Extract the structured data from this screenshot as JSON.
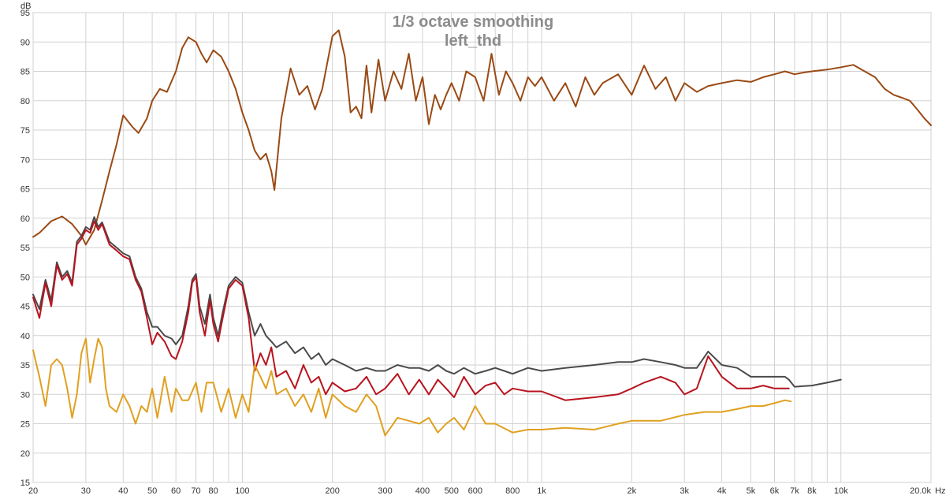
{
  "chart_data": {
    "type": "line",
    "title": "1/3 octave smoothing",
    "subtitle": "left_thd",
    "ylabel": "dB",
    "xunit": "Hz",
    "xscale": "log",
    "xlim": [
      20,
      20000
    ],
    "ylim": [
      15,
      95
    ],
    "grid": true,
    "y_ticks": [
      15,
      20,
      25,
      30,
      35,
      40,
      45,
      50,
      55,
      60,
      65,
      70,
      75,
      80,
      85,
      90,
      95
    ],
    "x_ticks": [
      {
        "value": 20,
        "label": "20"
      },
      {
        "value": 30,
        "label": "30"
      },
      {
        "value": 40,
        "label": "40"
      },
      {
        "value": 50,
        "label": "50"
      },
      {
        "value": 60,
        "label": "60"
      },
      {
        "value": 70,
        "label": "70"
      },
      {
        "value": 80,
        "label": "80"
      },
      {
        "value": 100,
        "label": "100"
      },
      {
        "value": 200,
        "label": "200"
      },
      {
        "value": 300,
        "label": "300"
      },
      {
        "value": 400,
        "label": "400"
      },
      {
        "value": 500,
        "label": "500"
      },
      {
        "value": 600,
        "label": "600"
      },
      {
        "value": 800,
        "label": "800"
      },
      {
        "value": 1000,
        "label": "1k"
      },
      {
        "value": 2000,
        "label": "2k"
      },
      {
        "value": 3000,
        "label": "3k"
      },
      {
        "value": 4000,
        "label": "4k"
      },
      {
        "value": 5000,
        "label": "5k"
      },
      {
        "value": 6000,
        "label": "6k"
      },
      {
        "value": 7000,
        "label": "7k"
      },
      {
        "value": 8000,
        "label": "8k"
      },
      {
        "value": 10000,
        "label": "10k"
      },
      {
        "value": 20000,
        "label": "20.0k"
      }
    ],
    "minor_grid_x": [
      90,
      700,
      900,
      9000
    ],
    "series": [
      {
        "color": "#9a4a14",
        "x": [
          20,
          21,
          23,
          25,
          27,
          29,
          30,
          32,
          34,
          36,
          38,
          40,
          43,
          45,
          48,
          50,
          53,
          56,
          60,
          63,
          66,
          70,
          73,
          76,
          80,
          85,
          90,
          95,
          100,
          105,
          110,
          115,
          120,
          125,
          128,
          135,
          145,
          155,
          165,
          175,
          185,
          200,
          210,
          220,
          230,
          240,
          250,
          260,
          270,
          285,
          300,
          320,
          340,
          360,
          380,
          400,
          420,
          440,
          460,
          480,
          500,
          530,
          560,
          600,
          640,
          680,
          720,
          760,
          800,
          850,
          900,
          950,
          1000,
          1100,
          1200,
          1300,
          1400,
          1500,
          1600,
          1800,
          2000,
          2200,
          2400,
          2600,
          2800,
          3000,
          3300,
          3600,
          4000,
          4500,
          5000,
          5500,
          6000,
          6500,
          7000,
          7500,
          8000,
          9000,
          10000,
          11000,
          12000,
          13000,
          14000,
          15000,
          16000,
          17000,
          18000,
          19000,
          20000
        ],
        "y": [
          56.8,
          57.5,
          59.5,
          60.3,
          59,
          57,
          55.5,
          58,
          63,
          68,
          72.5,
          77.5,
          75.5,
          74.5,
          77,
          80,
          82,
          81.5,
          85,
          89,
          90.8,
          90,
          88,
          86.5,
          88.6,
          87.5,
          85,
          82,
          78,
          75,
          71.5,
          70,
          71,
          68,
          64.8,
          77,
          85.5,
          81,
          82.5,
          78.5,
          82,
          91,
          92,
          87.5,
          78,
          79,
          77,
          86,
          78,
          87,
          80,
          85,
          82,
          88,
          80,
          84,
          76,
          81,
          78.5,
          81,
          83,
          80,
          85,
          84,
          80,
          88,
          81,
          85,
          83,
          80,
          84,
          82.5,
          84,
          80,
          83,
          79,
          84,
          81,
          83,
          84.5,
          81,
          86,
          82,
          84,
          80,
          83,
          81.5,
          82.5,
          83,
          83.5,
          83.2,
          84,
          84.5,
          85,
          84.5,
          84.8,
          85,
          85.3,
          85.7,
          86.1,
          85,
          84,
          82,
          81,
          80.5,
          80,
          78.5,
          77,
          75.8
        ]
      },
      {
        "color": "#4a4a4a",
        "x": [
          20,
          21,
          22,
          23,
          24,
          25,
          26,
          27,
          28,
          29,
          30,
          31,
          32,
          33,
          34,
          36,
          38,
          40,
          42,
          44,
          46,
          48,
          50,
          52,
          55,
          58,
          60,
          63,
          66,
          68,
          70,
          72,
          75,
          78,
          80,
          83,
          86,
          90,
          95,
          100,
          105,
          110,
          115,
          120,
          125,
          130,
          140,
          150,
          160,
          170,
          180,
          190,
          200,
          220,
          240,
          260,
          280,
          300,
          330,
          360,
          390,
          420,
          450,
          480,
          510,
          550,
          600,
          650,
          700,
          750,
          800,
          900,
          1000,
          1200,
          1500,
          1800,
          2000,
          2200,
          2500,
          2800,
          3000,
          3300,
          3600,
          4000,
          4500,
          5000,
          5500,
          6000,
          6500,
          6700,
          7000,
          8000,
          9000,
          10000
        ],
        "y": [
          47,
          44.5,
          49.5,
          46,
          52.5,
          50,
          51,
          49,
          56,
          57,
          58.5,
          58,
          60.2,
          58.5,
          59.3,
          56,
          55,
          54,
          53.5,
          50,
          48,
          44,
          41.5,
          41.5,
          40,
          39.5,
          38.5,
          40,
          45,
          49.5,
          50.5,
          45,
          42,
          47,
          43,
          40,
          44,
          48.5,
          50,
          49,
          44,
          40,
          42,
          40,
          39,
          38,
          39,
          37,
          38,
          36,
          37,
          35,
          36,
          35,
          34,
          34.5,
          34,
          34,
          35,
          34.5,
          34.5,
          34,
          35,
          34,
          33.5,
          34.5,
          33.5,
          34,
          34.5,
          34,
          33.5,
          34.5,
          34,
          34.5,
          35,
          35.5,
          35.5,
          36,
          35.5,
          35,
          34.5,
          34.5,
          37.3,
          35,
          34.5,
          33,
          33,
          33,
          33,
          32.5,
          31.3,
          31.5,
          32,
          32.5
        ]
      },
      {
        "color": "#b8141e",
        "x": [
          20,
          21,
          22,
          23,
          24,
          25,
          26,
          27,
          28,
          29,
          30,
          31,
          32,
          33,
          34,
          36,
          38,
          40,
          42,
          44,
          46,
          48,
          50,
          52,
          55,
          58,
          60,
          63,
          66,
          68,
          70,
          72,
          75,
          78,
          80,
          83,
          86,
          90,
          95,
          100,
          105,
          110,
          115,
          120,
          125,
          130,
          140,
          150,
          160,
          170,
          180,
          190,
          200,
          220,
          240,
          260,
          280,
          300,
          330,
          360,
          390,
          420,
          450,
          480,
          510,
          550,
          600,
          650,
          700,
          750,
          800,
          900,
          1000,
          1200,
          1500,
          1800,
          2000,
          2200,
          2500,
          2800,
          3000,
          3300,
          3600,
          4000,
          4500,
          5000,
          5500,
          6000,
          6500,
          6700
        ],
        "y": [
          46.5,
          43,
          49,
          45,
          52,
          49.5,
          50.5,
          48.5,
          55.5,
          56.5,
          58,
          57.5,
          59.5,
          58,
          59,
          55.5,
          54.5,
          53.5,
          53,
          49.5,
          47.5,
          43,
          38.5,
          40.5,
          39,
          36.5,
          36,
          39,
          44,
          49,
          50,
          44,
          40,
          46,
          42,
          39,
          43,
          48,
          49.5,
          48.5,
          43,
          34,
          37,
          35,
          38,
          33,
          34,
          31,
          35,
          32,
          33,
          30,
          32,
          30.5,
          31,
          33,
          30,
          31,
          33.5,
          30,
          32.5,
          30,
          32.5,
          31,
          29.5,
          33,
          30,
          31.5,
          32,
          30,
          31,
          30.5,
          30.5,
          29,
          29.5,
          30,
          31,
          32,
          33,
          32,
          30,
          31,
          36.5,
          33,
          31,
          31,
          31.5,
          31,
          31,
          31
        ]
      },
      {
        "color": "#e0a020",
        "x": [
          20,
          21,
          22,
          23,
          24,
          25,
          26,
          27,
          28,
          29,
          30,
          31,
          32,
          33,
          34,
          35,
          36,
          38,
          40,
          42,
          44,
          46,
          48,
          50,
          52,
          55,
          58,
          60,
          63,
          66,
          70,
          73,
          76,
          80,
          85,
          90,
          95,
          100,
          105,
          110,
          115,
          120,
          125,
          130,
          140,
          150,
          160,
          170,
          180,
          190,
          200,
          220,
          240,
          260,
          280,
          300,
          330,
          360,
          390,
          420,
          450,
          480,
          510,
          550,
          600,
          650,
          700,
          800,
          900,
          1000,
          1200,
          1500,
          1800,
          2000,
          2500,
          3000,
          3500,
          4000,
          4500,
          5000,
          5500,
          6000,
          6500,
          6800
        ],
        "y": [
          37.5,
          33,
          28,
          35,
          36,
          35,
          31,
          26,
          30,
          37,
          39.5,
          32,
          36,
          39.5,
          38,
          31,
          28,
          27,
          30,
          28,
          25,
          28,
          27,
          31,
          26,
          33,
          27,
          31,
          29,
          29,
          32,
          27,
          32,
          32,
          27,
          31,
          26,
          30,
          27,
          35,
          33,
          31,
          34,
          30,
          31,
          28,
          30,
          27,
          31,
          26,
          30,
          28,
          27,
          30,
          28,
          23,
          26,
          25.5,
          25,
          26,
          23.5,
          25,
          26,
          24,
          28,
          25,
          25,
          23.5,
          24,
          24,
          24.3,
          24,
          25,
          25.5,
          25.5,
          26.5,
          27,
          27,
          27.5,
          28,
          28,
          28.5,
          29,
          28.8
        ]
      }
    ]
  }
}
